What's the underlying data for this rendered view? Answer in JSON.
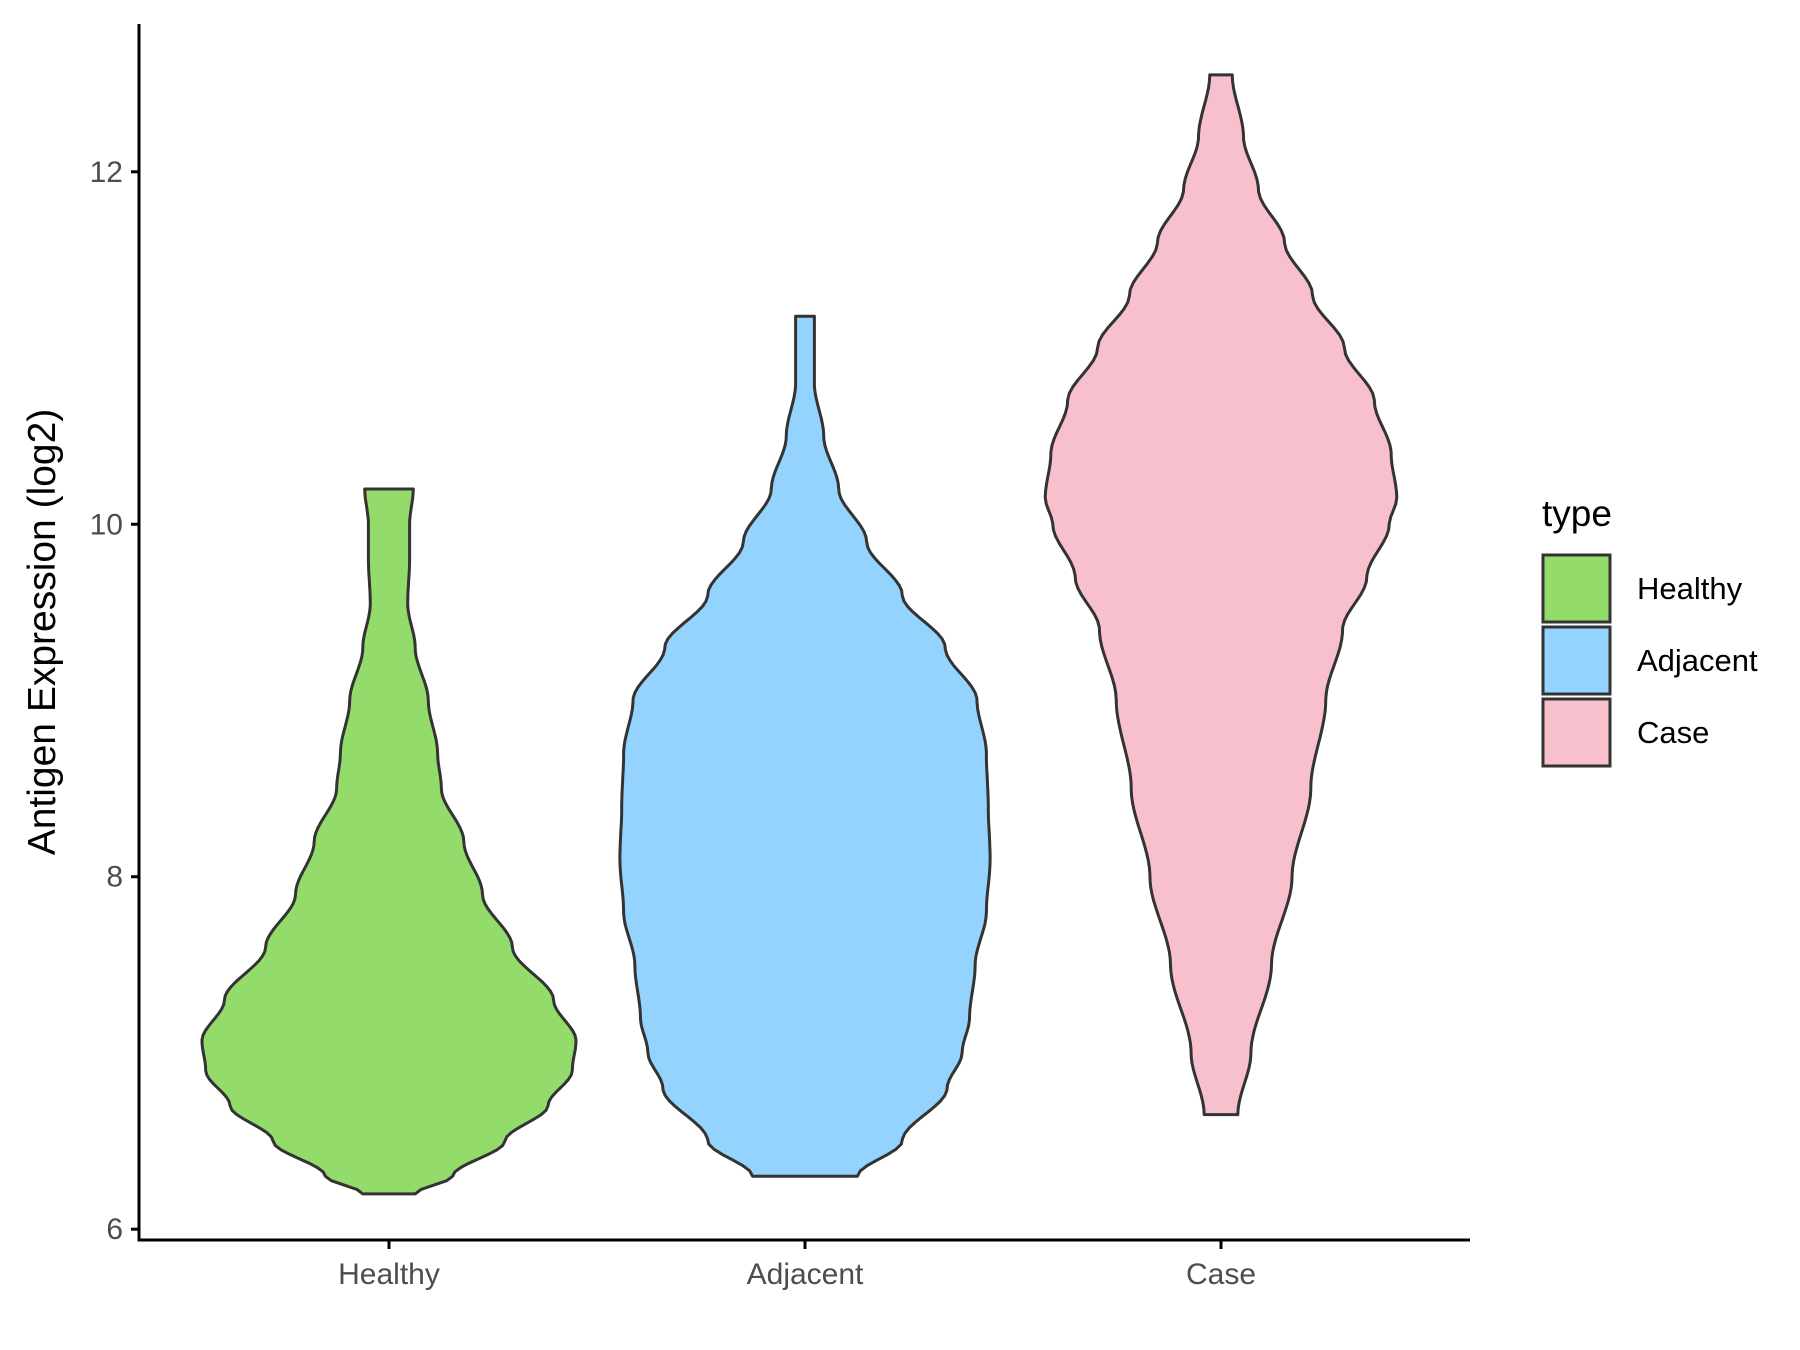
{
  "chart_data": {
    "type": "violin",
    "ylabel": "Antigen Expression (log2)",
    "xlabel": "",
    "categories": [
      "Healthy",
      "Adjacent",
      "Case"
    ],
    "ylim": [
      5.95,
      12.85
    ],
    "yticks": [
      "6",
      "8",
      "10",
      "12"
    ],
    "grid": false,
    "legend": {
      "title": "type",
      "position": "right",
      "entries": [
        "Healthy",
        "Adjacent",
        "Case"
      ]
    },
    "colors": {
      "Healthy": "#93DB6A",
      "Adjacent": "#93D3FD",
      "Case": "#F7C0CC",
      "outline": "#333333",
      "axis": "#000000"
    },
    "series": [
      {
        "name": "Healthy",
        "min": 6.2,
        "max": 10.2,
        "density_profile": [
          [
            6.2,
            0.14
          ],
          [
            6.3,
            0.34
          ],
          [
            6.5,
            0.62
          ],
          [
            6.7,
            0.85
          ],
          [
            6.9,
            0.98
          ],
          [
            7.07,
            1.0
          ],
          [
            7.3,
            0.88
          ],
          [
            7.6,
            0.66
          ],
          [
            7.9,
            0.5
          ],
          [
            8.2,
            0.4
          ],
          [
            8.5,
            0.28
          ],
          [
            8.7,
            0.26
          ],
          [
            9.0,
            0.21
          ],
          [
            9.3,
            0.14
          ],
          [
            9.55,
            0.1
          ],
          [
            9.8,
            0.11
          ],
          [
            10.0,
            0.11
          ],
          [
            10.2,
            0.13
          ]
        ]
      },
      {
        "name": "Adjacent",
        "min": 6.3,
        "max": 11.18,
        "density_profile": [
          [
            6.3,
            0.28
          ],
          [
            6.5,
            0.52
          ],
          [
            6.8,
            0.76
          ],
          [
            7.0,
            0.84
          ],
          [
            7.2,
            0.88
          ],
          [
            7.5,
            0.91
          ],
          [
            7.8,
            0.97
          ],
          [
            8.1,
            0.99
          ],
          [
            8.4,
            0.98
          ],
          [
            8.7,
            0.97
          ],
          [
            9.0,
            0.92
          ],
          [
            9.3,
            0.75
          ],
          [
            9.6,
            0.52
          ],
          [
            9.9,
            0.33
          ],
          [
            10.2,
            0.18
          ],
          [
            10.5,
            0.1
          ],
          [
            10.8,
            0.05
          ],
          [
            11.0,
            0.05
          ],
          [
            11.18,
            0.05
          ]
        ]
      },
      {
        "name": "Case",
        "min": 6.65,
        "max": 12.55,
        "density_profile": [
          [
            6.65,
            0.09
          ],
          [
            7.0,
            0.16
          ],
          [
            7.5,
            0.27
          ],
          [
            8.0,
            0.38
          ],
          [
            8.5,
            0.48
          ],
          [
            9.0,
            0.56
          ],
          [
            9.4,
            0.65
          ],
          [
            9.7,
            0.78
          ],
          [
            10.0,
            0.9
          ],
          [
            10.15,
            0.94
          ],
          [
            10.4,
            0.91
          ],
          [
            10.7,
            0.82
          ],
          [
            11.0,
            0.66
          ],
          [
            11.3,
            0.49
          ],
          [
            11.6,
            0.34
          ],
          [
            11.9,
            0.2
          ],
          [
            12.2,
            0.12
          ],
          [
            12.55,
            0.06
          ]
        ]
      }
    ]
  }
}
